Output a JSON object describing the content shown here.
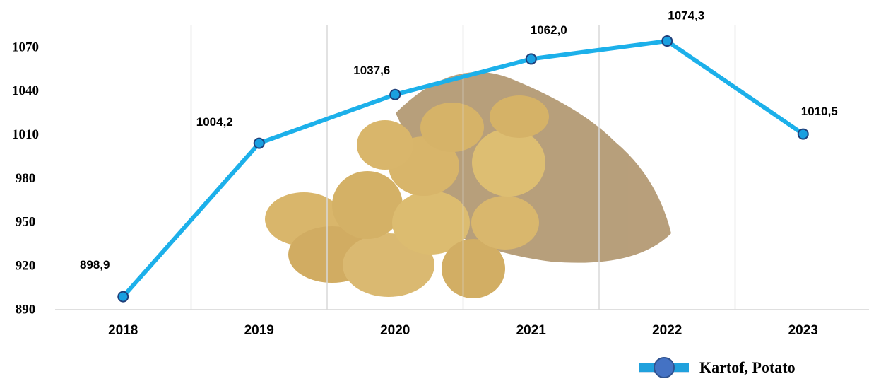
{
  "chart_data": {
    "type": "line",
    "categories": [
      "2018",
      "2019",
      "2020",
      "2021",
      "2022",
      "2023"
    ],
    "series": [
      {
        "name": "Kartof, Potato",
        "color": "#1cb0ea",
        "values": [
          898.9,
          1004.2,
          1037.6,
          1062.0,
          1074.3,
          1010.5
        ],
        "value_labels": [
          "898,9",
          "1004,2",
          "1037,6",
          "1062,0",
          "1074,3",
          "1010,5"
        ]
      }
    ],
    "ylim": [
      890,
      1085
    ],
    "yticks": [
      890,
      920,
      950,
      980,
      1010,
      1040,
      1070
    ],
    "grid": true,
    "legend": "bottom-right"
  }
}
